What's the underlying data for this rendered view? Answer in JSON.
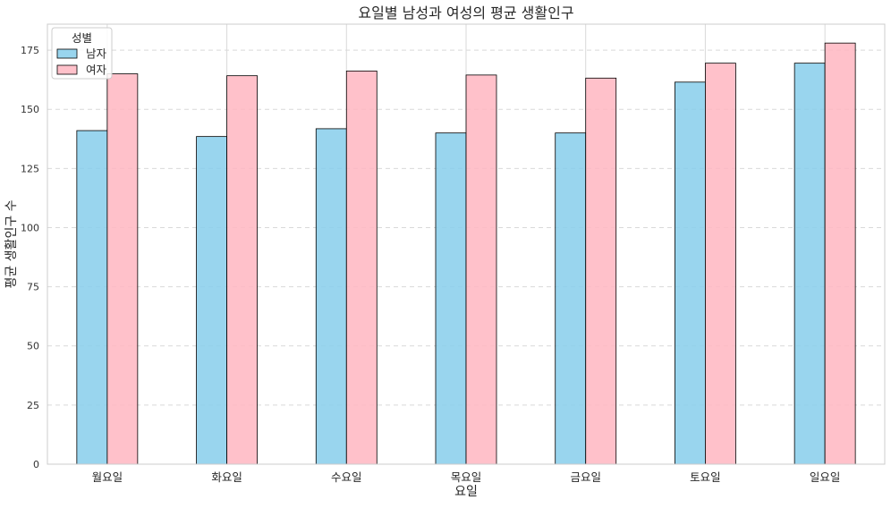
{
  "chart_data": {
    "type": "bar",
    "title": "요일별 남성과 여성의 평균 생활인구",
    "xlabel": "요일",
    "ylabel": "평균 생활인구 수",
    "categories": [
      "월요일",
      "화요일",
      "수요일",
      "목요일",
      "금요일",
      "토요일",
      "일요일"
    ],
    "series": [
      {
        "name": "남자",
        "values": [
          141,
          138.5,
          141.8,
          140,
          140,
          161.5,
          169.5
        ],
        "color": "#87ceeb"
      },
      {
        "name": "여자",
        "values": [
          165,
          164.2,
          166.2,
          164.5,
          163.2,
          169.5,
          178
        ],
        "color": "#ffb6c1"
      }
    ],
    "ylim": [
      0,
      186
    ],
    "yticks": [
      0,
      25,
      50,
      75,
      100,
      125,
      150,
      175
    ],
    "grid": true,
    "legend": {
      "title": "성별",
      "position": "top-left"
    },
    "colors": {
      "grid": "#d9d9d9",
      "axis": "#cccccc",
      "bar_edge": "#000000"
    }
  }
}
